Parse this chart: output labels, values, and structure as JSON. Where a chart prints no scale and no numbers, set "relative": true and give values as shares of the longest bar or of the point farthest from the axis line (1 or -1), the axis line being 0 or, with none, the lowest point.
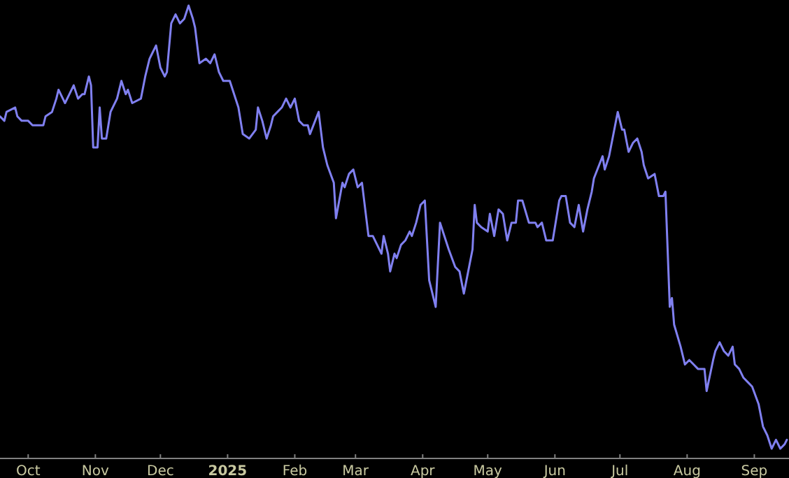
{
  "chart_data": {
    "type": "line",
    "relative": true,
    "xlim": [
      "2024-09-18",
      "2025-09-17"
    ],
    "xticks": [
      {
        "value": "2024-10-01",
        "label": "Oct"
      },
      {
        "value": "2024-11-01",
        "label": "Nov"
      },
      {
        "value": "2024-12-01",
        "label": "Dec"
      },
      {
        "value": "2025-01-01",
        "label": "2025"
      },
      {
        "value": "2025-02-01",
        "label": "Feb"
      },
      {
        "value": "2025-03-01",
        "label": "Mar"
      },
      {
        "value": "2025-04-01",
        "label": "Apr"
      },
      {
        "value": "2025-05-01",
        "label": "May"
      },
      {
        "value": "2025-06-01",
        "label": "Jun"
      },
      {
        "value": "2025-07-01",
        "label": "Jul"
      },
      {
        "value": "2025-08-01",
        "label": "Aug"
      },
      {
        "value": "2025-09-01",
        "label": "Sep"
      }
    ],
    "x": [
      "2024-09-18",
      "2024-09-20",
      "2024-09-21",
      "2024-09-25",
      "2024-09-26",
      "2024-09-28",
      "2024-10-01",
      "2024-10-03",
      "2024-10-04",
      "2024-10-06",
      "2024-10-08",
      "2024-10-09",
      "2024-10-12",
      "2024-10-14",
      "2024-10-15",
      "2024-10-17",
      "2024-10-18",
      "2024-10-20",
      "2024-10-22",
      "2024-10-24",
      "2024-10-26",
      "2024-10-27",
      "2024-10-29",
      "2024-10-30",
      "2024-10-31",
      "2024-11-02",
      "2024-11-03",
      "2024-11-04",
      "2024-11-06",
      "2024-11-08",
      "2024-11-11",
      "2024-11-13",
      "2024-11-15",
      "2024-11-16",
      "2024-11-18",
      "2024-11-22",
      "2024-11-24",
      "2024-11-26",
      "2024-11-27",
      "2024-11-29",
      "2024-12-01",
      "2024-12-03",
      "2024-12-04",
      "2024-12-06",
      "2024-12-08",
      "2024-12-10",
      "2024-12-12",
      "2024-12-14",
      "2024-12-16",
      "2024-12-17",
      "2024-12-19",
      "2024-12-22",
      "2024-12-24",
      "2024-12-26",
      "2024-12-28",
      "2024-12-30",
      "2025-01-02",
      "2025-01-04",
      "2025-01-06",
      "2025-01-08",
      "2025-01-11",
      "2025-01-14",
      "2025-01-15",
      "2025-01-17",
      "2025-01-19",
      "2025-01-21",
      "2025-01-22",
      "2025-01-24",
      "2025-01-26",
      "2025-01-28",
      "2025-01-30",
      "2025-02-01",
      "2025-02-03",
      "2025-02-05",
      "2025-02-07",
      "2025-02-08",
      "2025-02-12",
      "2025-02-14",
      "2025-02-16",
      "2025-02-19",
      "2025-02-20",
      "2025-02-23",
      "2025-02-24",
      "2025-02-26",
      "2025-02-28",
      "2025-03-02",
      "2025-03-04",
      "2025-03-06",
      "2025-03-07",
      "2025-03-09",
      "2025-03-13",
      "2025-03-14",
      "2025-03-16",
      "2025-03-17",
      "2025-03-19",
      "2025-03-20",
      "2025-03-22",
      "2025-03-24",
      "2025-03-26",
      "2025-03-27",
      "2025-03-29",
      "2025-03-31",
      "2025-04-02",
      "2025-04-04",
      "2025-04-07",
      "2025-04-09",
      "2025-04-11",
      "2025-04-13",
      "2025-04-16",
      "2025-04-18",
      "2025-04-20",
      "2025-04-24",
      "2025-04-25",
      "2025-04-26",
      "2025-04-28",
      "2025-05-01",
      "2025-05-02",
      "2025-05-04",
      "2025-05-06",
      "2025-05-08",
      "2025-05-10",
      "2025-05-12",
      "2025-05-14",
      "2025-05-15",
      "2025-05-17",
      "2025-05-20",
      "2025-05-23",
      "2025-05-24",
      "2025-05-26",
      "2025-05-28",
      "2025-05-31",
      "2025-06-03",
      "2025-06-04",
      "2025-06-06",
      "2025-06-08",
      "2025-06-10",
      "2025-06-12",
      "2025-06-14",
      "2025-06-16",
      "2025-06-18",
      "2025-06-19",
      "2025-06-23",
      "2025-06-24",
      "2025-06-26",
      "2025-06-30",
      "2025-07-02",
      "2025-07-03",
      "2025-07-05",
      "2025-07-07",
      "2025-07-09",
      "2025-07-11",
      "2025-07-12",
      "2025-07-14",
      "2025-07-17",
      "2025-07-19",
      "2025-07-21",
      "2025-07-22",
      "2025-07-24",
      "2025-07-25",
      "2025-07-26",
      "2025-07-29",
      "2025-07-31",
      "2025-08-02",
      "2025-08-04",
      "2025-08-06",
      "2025-08-09",
      "2025-08-10",
      "2025-08-13",
      "2025-08-14",
      "2025-08-16",
      "2025-08-18",
      "2025-08-20",
      "2025-08-22",
      "2025-08-23",
      "2025-08-25",
      "2025-08-27",
      "2025-08-29",
      "2025-08-31",
      "2025-09-03",
      "2025-09-05",
      "2025-09-07",
      "2025-09-09",
      "2025-09-11",
      "2025-09-13",
      "2025-09-15",
      "2025-09-16"
    ],
    "series": [
      {
        "color": "#8080f0",
        "values": [
          0.75,
          0.74,
          0.76,
          0.77,
          0.75,
          0.74,
          0.74,
          0.73,
          0.73,
          0.73,
          0.73,
          0.75,
          0.76,
          0.79,
          0.81,
          0.79,
          0.78,
          0.8,
          0.82,
          0.79,
          0.8,
          0.8,
          0.84,
          0.82,
          0.68,
          0.68,
          0.77,
          0.7,
          0.7,
          0.76,
          0.79,
          0.83,
          0.8,
          0.81,
          0.78,
          0.79,
          0.84,
          0.88,
          0.89,
          0.91,
          0.86,
          0.84,
          0.85,
          0.96,
          0.98,
          0.96,
          0.97,
          1,
          0.97,
          0.95,
          0.87,
          0.88,
          0.87,
          0.89,
          0.85,
          0.83,
          0.83,
          0.8,
          0.77,
          0.71,
          0.7,
          0.72,
          0.77,
          0.74,
          0.7,
          0.73,
          0.75,
          0.76,
          0.77,
          0.79,
          0.77,
          0.79,
          0.74,
          0.73,
          0.73,
          0.71,
          0.76,
          0.68,
          0.64,
          0.6,
          0.52,
          0.6,
          0.59,
          0.62,
          0.63,
          0.59,
          0.6,
          0.52,
          0.48,
          0.48,
          0.44,
          0.48,
          0.44,
          0.4,
          0.44,
          0.43,
          0.46,
          0.47,
          0.49,
          0.48,
          0.51,
          0.55,
          0.56,
          0.38,
          0.32,
          0.51,
          0.48,
          0.45,
          0.41,
          0.4,
          0.35,
          0.45,
          0.55,
          0.51,
          0.5,
          0.49,
          0.53,
          0.48,
          0.54,
          0.53,
          0.47,
          0.51,
          0.51,
          0.56,
          0.56,
          0.51,
          0.51,
          0.5,
          0.51,
          0.47,
          0.47,
          0.56,
          0.57,
          0.57,
          0.51,
          0.5,
          0.55,
          0.49,
          0.54,
          0.58,
          0.61,
          0.66,
          0.63,
          0.66,
          0.76,
          0.72,
          0.72,
          0.67,
          0.69,
          0.7,
          0.67,
          0.64,
          0.61,
          0.62,
          0.57,
          0.57,
          0.58,
          0.32,
          0.34,
          0.28,
          0.23,
          0.19,
          0.2,
          0.19,
          0.18,
          0.18,
          0.13,
          0.2,
          0.22,
          0.24,
          0.22,
          0.21,
          0.23,
          0.19,
          0.18,
          0.16,
          0.15,
          0.14,
          0.1,
          0.05,
          0.03,
          0,
          0.02,
          0,
          0.01,
          0.02
        ]
      }
    ]
  }
}
